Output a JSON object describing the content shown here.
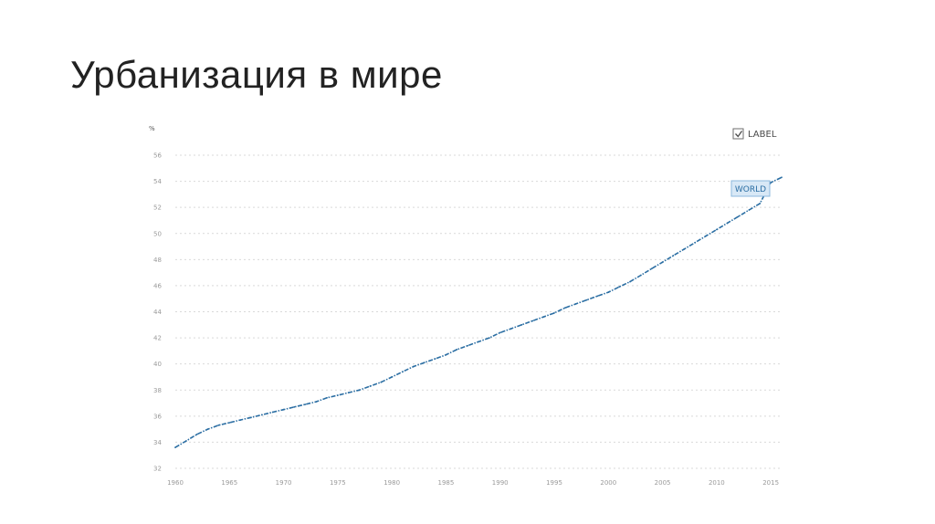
{
  "slide": {
    "title": "Урбанизация в мире"
  },
  "legend": {
    "label": "LABEL",
    "checked": true,
    "placement": "top-right"
  },
  "chart_data": {
    "type": "line",
    "title": "",
    "xlabel": "",
    "ylabel": "%",
    "xlim": [
      1960,
      2016
    ],
    "ylim": [
      32,
      56
    ],
    "x_ticks": [
      1960,
      1965,
      1970,
      1975,
      1980,
      1985,
      1990,
      1995,
      2000,
      2005,
      2010,
      2015
    ],
    "y_ticks": [
      32,
      34,
      36,
      38,
      40,
      42,
      44,
      46,
      48,
      50,
      52,
      54,
      56
    ],
    "grid": true,
    "line_color": "#2b6ea3",
    "series": [
      {
        "name": "WORLD",
        "x": [
          1960,
          1961,
          1962,
          1963,
          1964,
          1965,
          1966,
          1967,
          1968,
          1969,
          1970,
          1971,
          1972,
          1973,
          1974,
          1975,
          1976,
          1977,
          1978,
          1979,
          1980,
          1981,
          1982,
          1983,
          1984,
          1985,
          1986,
          1987,
          1988,
          1989,
          1990,
          1991,
          1992,
          1993,
          1994,
          1995,
          1996,
          1997,
          1998,
          1999,
          2000,
          2001,
          2002,
          2003,
          2004,
          2005,
          2006,
          2007,
          2008,
          2009,
          2010,
          2011,
          2012,
          2013,
          2014,
          2015,
          2016
        ],
        "values": [
          33.6,
          34.1,
          34.6,
          35.0,
          35.3,
          35.5,
          35.7,
          35.9,
          36.1,
          36.3,
          36.5,
          36.7,
          36.9,
          37.1,
          37.4,
          37.6,
          37.8,
          38.0,
          38.3,
          38.6,
          39.0,
          39.4,
          39.8,
          40.1,
          40.4,
          40.7,
          41.1,
          41.4,
          41.7,
          42.0,
          42.4,
          42.7,
          43.0,
          43.3,
          43.6,
          43.9,
          44.3,
          44.6,
          44.9,
          45.2,
          45.5,
          45.9,
          46.3,
          46.8,
          47.3,
          47.8,
          48.3,
          48.8,
          49.3,
          49.8,
          50.3,
          50.8,
          51.3,
          51.8,
          52.3,
          53.9,
          54.3
        ]
      }
    ]
  }
}
